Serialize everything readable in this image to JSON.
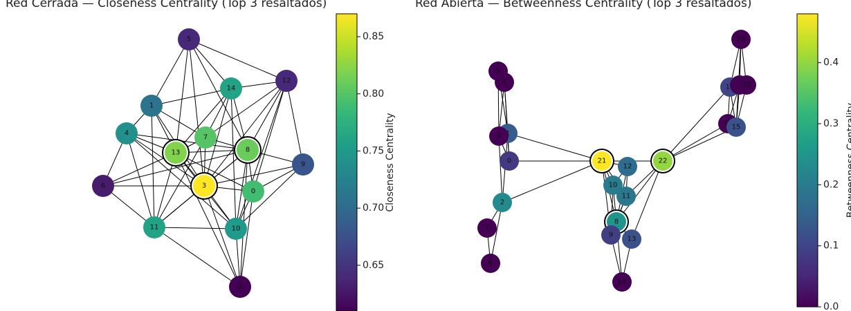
{
  "chart_data": [
    {
      "type": "network",
      "title": "Red Cerrada — Closeness Centrality (Top 3 resaltados)",
      "colorbar_label": "Closeness Centrality",
      "colorbar_ticks": [
        0.65,
        0.7,
        0.75,
        0.8,
        0.85
      ],
      "colorbar_tick_labels": [
        "0.65",
        "0.70",
        "0.75",
        "0.80",
        "0.85"
      ],
      "color_range": [
        0.61,
        0.87
      ],
      "highlighted": [
        "3",
        "13",
        "8"
      ],
      "nodes": [
        {
          "id": "0",
          "value": 0.79
        },
        {
          "id": "1",
          "value": 0.71
        },
        {
          "id": "2",
          "value": 0.61
        },
        {
          "id": "3",
          "value": 0.87
        },
        {
          "id": "4",
          "value": 0.74
        },
        {
          "id": "5",
          "value": 0.64
        },
        {
          "id": "6",
          "value": 0.63
        },
        {
          "id": "7",
          "value": 0.8
        },
        {
          "id": "8",
          "value": 0.81
        },
        {
          "id": "9",
          "value": 0.68
        },
        {
          "id": "10",
          "value": 0.75
        },
        {
          "id": "11",
          "value": 0.76
        },
        {
          "id": "12",
          "value": 0.64
        },
        {
          "id": "13",
          "value": 0.82
        },
        {
          "id": "14",
          "value": 0.76
        }
      ],
      "edges": [
        [
          "5",
          "1"
        ],
        [
          "5",
          "13"
        ],
        [
          "5",
          "3"
        ],
        [
          "5",
          "14"
        ],
        [
          "5",
          "8"
        ],
        [
          "5",
          "12"
        ],
        [
          "1",
          "4"
        ],
        [
          "1",
          "13"
        ],
        [
          "1",
          "3"
        ],
        [
          "1",
          "11"
        ],
        [
          "1",
          "14"
        ],
        [
          "1",
          "7"
        ],
        [
          "4",
          "13"
        ],
        [
          "4",
          "3"
        ],
        [
          "4",
          "6"
        ],
        [
          "4",
          "11"
        ],
        [
          "4",
          "8"
        ],
        [
          "4",
          "10"
        ],
        [
          "14",
          "12"
        ],
        [
          "14",
          "13"
        ],
        [
          "14",
          "3"
        ],
        [
          "14",
          "8"
        ],
        [
          "14",
          "10"
        ],
        [
          "14",
          "7"
        ],
        [
          "12",
          "8"
        ],
        [
          "12",
          "3"
        ],
        [
          "12",
          "0"
        ],
        [
          "12",
          "9"
        ],
        [
          "12",
          "7"
        ],
        [
          "12",
          "10"
        ],
        [
          "7",
          "13"
        ],
        [
          "7",
          "3"
        ],
        [
          "7",
          "8"
        ],
        [
          "7",
          "11"
        ],
        [
          "13",
          "6"
        ],
        [
          "13",
          "11"
        ],
        [
          "13",
          "3"
        ],
        [
          "13",
          "8"
        ],
        [
          "13",
          "10"
        ],
        [
          "13",
          "2"
        ],
        [
          "13",
          "0"
        ],
        [
          "8",
          "9"
        ],
        [
          "8",
          "0"
        ],
        [
          "8",
          "3"
        ],
        [
          "8",
          "10"
        ],
        [
          "8",
          "2"
        ],
        [
          "8",
          "11"
        ],
        [
          "9",
          "0"
        ],
        [
          "9",
          "10"
        ],
        [
          "9",
          "3"
        ],
        [
          "6",
          "3"
        ],
        [
          "6",
          "11"
        ],
        [
          "6",
          "8"
        ],
        [
          "3",
          "0"
        ],
        [
          "3",
          "11"
        ],
        [
          "3",
          "10"
        ],
        [
          "3",
          "2"
        ],
        [
          "0",
          "10"
        ],
        [
          "0",
          "2"
        ],
        [
          "11",
          "10"
        ],
        [
          "11",
          "2"
        ],
        [
          "10",
          "2"
        ]
      ]
    },
    {
      "type": "network",
      "title": "Red Abierta — Betweenness Centrality (Top 3 resaltados)",
      "colorbar_label": "Betweenness Centrality",
      "colorbar_ticks": [
        0.0,
        0.1,
        0.2,
        0.3,
        0.4
      ],
      "colorbar_tick_labels": [
        "0.0",
        "0.1",
        "0.2",
        "0.3",
        "0.4"
      ],
      "color_range": [
        0.0,
        0.48
      ],
      "highlighted": [
        "21",
        "22",
        "8"
      ],
      "nodes": [
        {
          "id": "5",
          "value": 0.0
        },
        {
          "id": "4",
          "value": 0.0
        },
        {
          "id": "1",
          "value": 0.14
        },
        {
          "id": "3",
          "value": 0.0
        },
        {
          "id": "0",
          "value": 0.08
        },
        {
          "id": "2",
          "value": 0.23
        },
        {
          "id": "7",
          "value": 0.0
        },
        {
          "id": "6",
          "value": 0.0
        },
        {
          "id": "21",
          "value": 0.48
        },
        {
          "id": "22",
          "value": 0.4
        },
        {
          "id": "12",
          "value": 0.17
        },
        {
          "id": "10",
          "value": 0.2
        },
        {
          "id": "11",
          "value": 0.19
        },
        {
          "id": "8",
          "value": 0.25
        },
        {
          "id": "9",
          "value": 0.09
        },
        {
          "id": "13",
          "value": 0.12
        },
        {
          "id": "14",
          "value": 0.0
        },
        {
          "id": "18",
          "value": 0.0
        },
        {
          "id": "16",
          "value": 0.1
        },
        {
          "id": "19",
          "value": 0.0
        },
        {
          "id": "20",
          "value": 0.0
        },
        {
          "id": "17",
          "value": 0.0
        },
        {
          "id": "15",
          "value": 0.12
        }
      ],
      "edges": [
        [
          "5",
          "4"
        ],
        [
          "5",
          "1"
        ],
        [
          "5",
          "3"
        ],
        [
          "4",
          "1"
        ],
        [
          "4",
          "3"
        ],
        [
          "4",
          "0"
        ],
        [
          "1",
          "3"
        ],
        [
          "1",
          "0"
        ],
        [
          "3",
          "0"
        ],
        [
          "3",
          "2"
        ],
        [
          "1",
          "2"
        ],
        [
          "0",
          "21"
        ],
        [
          "1",
          "21"
        ],
        [
          "2",
          "21"
        ],
        [
          "2",
          "7"
        ],
        [
          "2",
          "6"
        ],
        [
          "7",
          "6"
        ],
        [
          "21",
          "22"
        ],
        [
          "21",
          "12"
        ],
        [
          "21",
          "10"
        ],
        [
          "21",
          "11"
        ],
        [
          "21",
          "8"
        ],
        [
          "21",
          "9"
        ],
        [
          "12",
          "10"
        ],
        [
          "12",
          "11"
        ],
        [
          "12",
          "8"
        ],
        [
          "10",
          "11"
        ],
        [
          "10",
          "8"
        ],
        [
          "10",
          "9"
        ],
        [
          "11",
          "8"
        ],
        [
          "11",
          "9"
        ],
        [
          "8",
          "9"
        ],
        [
          "8",
          "13"
        ],
        [
          "8",
          "14"
        ],
        [
          "9",
          "14"
        ],
        [
          "13",
          "14"
        ],
        [
          "22",
          "8"
        ],
        [
          "22",
          "11"
        ],
        [
          "22",
          "13"
        ],
        [
          "22",
          "16"
        ],
        [
          "22",
          "17"
        ],
        [
          "22",
          "15"
        ],
        [
          "16",
          "18"
        ],
        [
          "16",
          "19"
        ],
        [
          "16",
          "20"
        ],
        [
          "16",
          "17"
        ],
        [
          "16",
          "15"
        ],
        [
          "18",
          "19"
        ],
        [
          "18",
          "20"
        ],
        [
          "18",
          "15"
        ],
        [
          "19",
          "20"
        ],
        [
          "19",
          "17"
        ],
        [
          "19",
          "15"
        ],
        [
          "20",
          "15"
        ],
        [
          "17",
          "15"
        ]
      ]
    }
  ]
}
